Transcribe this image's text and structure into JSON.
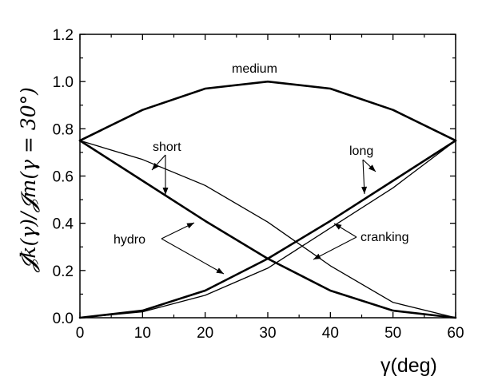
{
  "chart_data": {
    "type": "line",
    "xlabel": "γ(deg)",
    "ylabel": "𝓙k(γ)/𝓙m(γ =   30°)",
    "xlim": [
      0,
      60
    ],
    "ylim": [
      0.0,
      1.2
    ],
    "xticks": [
      "0",
      "10",
      "20",
      "30",
      "40",
      "50",
      "60"
    ],
    "yticks": [
      "0.0",
      "0.2",
      "0.4",
      "0.6",
      "0.8",
      "1.0",
      "1.2"
    ],
    "grid": false,
    "series": [
      {
        "group": "hydro",
        "weight": "thick",
        "x": [
          0,
          10,
          20,
          30,
          40,
          50,
          60
        ],
        "y": [
          0.0,
          0.03,
          0.115,
          0.25,
          0.41,
          0.58,
          0.75
        ]
      },
      {
        "group": "hydro",
        "weight": "thick",
        "x": [
          0,
          10,
          20,
          30,
          40,
          50,
          60
        ],
        "y": [
          0.75,
          0.58,
          0.41,
          0.25,
          0.115,
          0.03,
          0.0
        ]
      },
      {
        "group": "hydro",
        "weight": "thick",
        "x": [
          0,
          10,
          20,
          30,
          40,
          50,
          60
        ],
        "y": [
          0.75,
          0.88,
          0.97,
          1.0,
          0.97,
          0.88,
          0.75
        ]
      },
      {
        "group": "cranking",
        "weight": "thin",
        "x": [
          0,
          10,
          20,
          30,
          40,
          50,
          60
        ],
        "y": [
          0.0,
          0.025,
          0.095,
          0.21,
          0.38,
          0.55,
          0.75
        ]
      },
      {
        "group": "cranking",
        "weight": "thin",
        "x": [
          0,
          10,
          20,
          30,
          40,
          50,
          60
        ],
        "y": [
          0.75,
          0.67,
          0.56,
          0.405,
          0.22,
          0.065,
          0.0
        ]
      }
    ],
    "annotations": [
      {
        "text": "medium"
      },
      {
        "text": "short"
      },
      {
        "text": "long"
      },
      {
        "text": "hydro"
      },
      {
        "text": "cranking"
      }
    ]
  }
}
